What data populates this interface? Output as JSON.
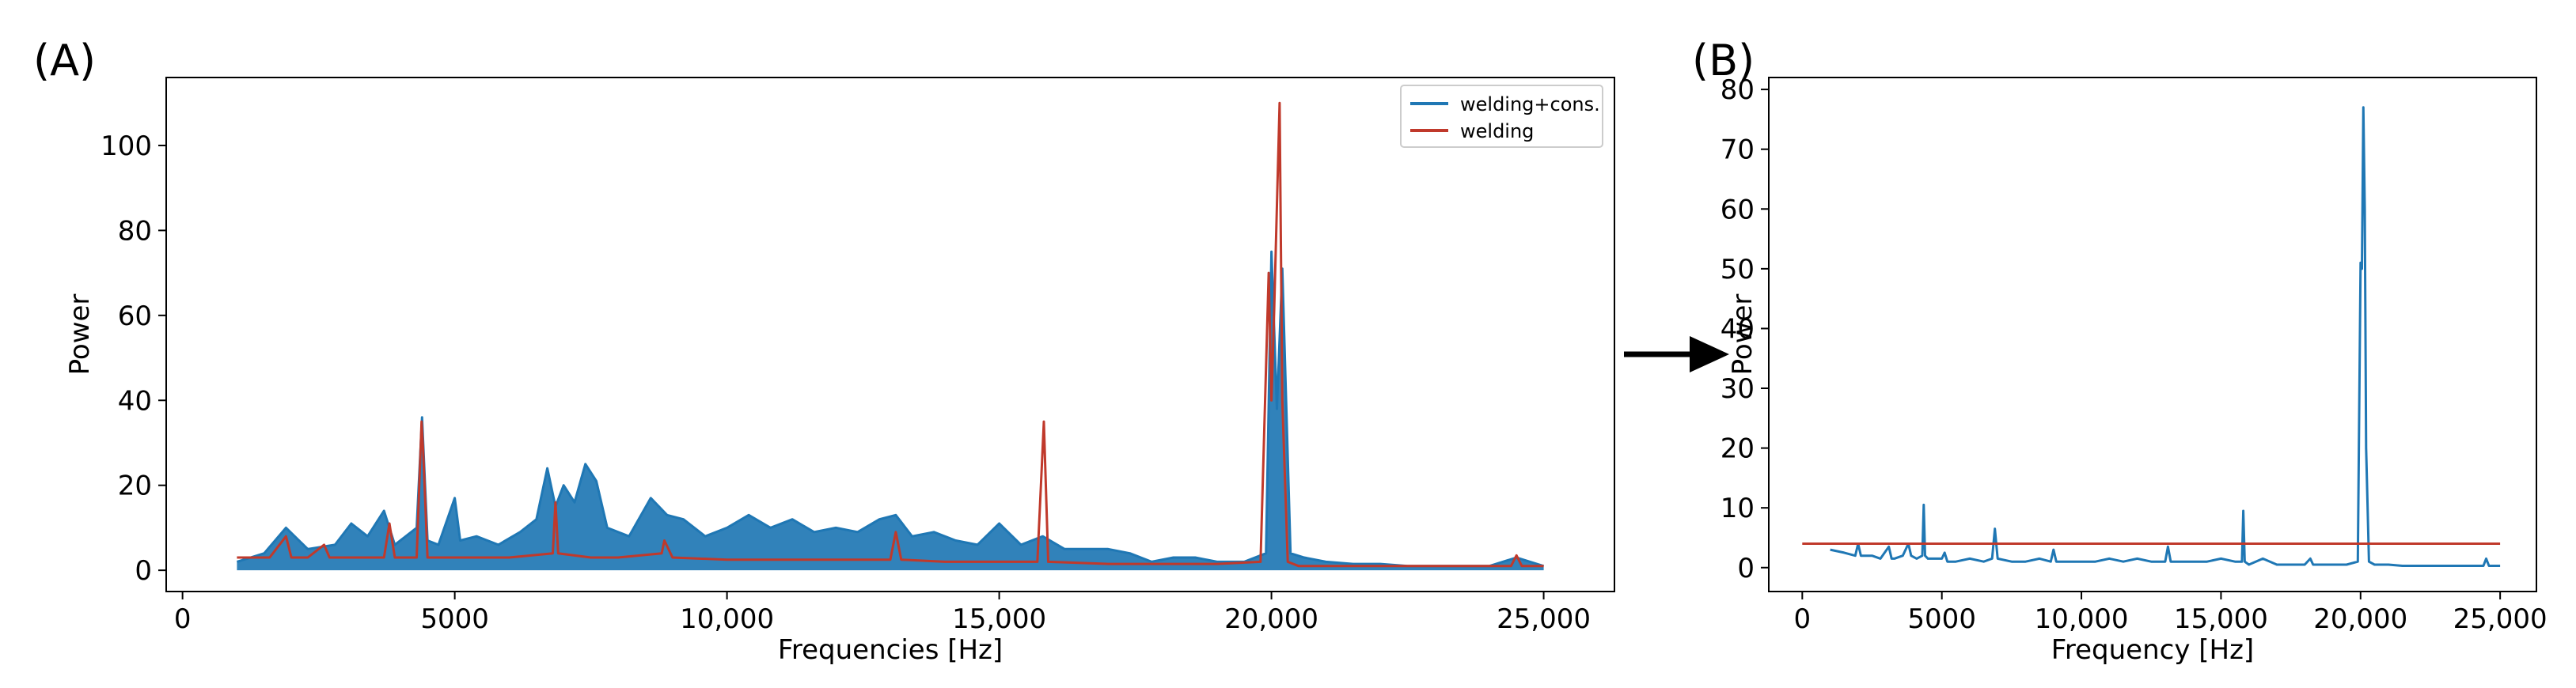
{
  "panels": {
    "a_label": "(A)",
    "b_label": "(B)"
  },
  "colors": {
    "blue": "#1f77b4",
    "red": "#c0392b",
    "frame": "#000000"
  },
  "chart_data": [
    {
      "id": "A",
      "type": "line",
      "xlabel": "Frequencies [Hz]",
      "ylabel": "Power",
      "xlim": [
        -300,
        26300
      ],
      "ylim": [
        -5,
        116
      ],
      "xticks": [
        0,
        5000,
        10000,
        15000,
        20000,
        25000
      ],
      "xtick_labels": [
        "0",
        "5000",
        "10,000",
        "15,000",
        "20,000",
        "25,000"
      ],
      "yticks": [
        0,
        20,
        40,
        60,
        80,
        100
      ],
      "ytick_labels": [
        "0",
        "20",
        "40",
        "60",
        "80",
        "100"
      ],
      "legend_position": "top-right",
      "series": [
        {
          "name": "welding+cons.",
          "color": "#1f77b4",
          "style": "filled-noisy",
          "x": [
            1000,
            1500,
            1900,
            2300,
            2800,
            3100,
            3400,
            3700,
            3900,
            4100,
            4300,
            4400,
            4500,
            4700,
            5000,
            5100,
            5400,
            5800,
            6200,
            6500,
            6700,
            6850,
            7000,
            7200,
            7400,
            7600,
            7800,
            8200,
            8600,
            8900,
            9200,
            9600,
            10000,
            10400,
            10800,
            11200,
            11600,
            12000,
            12400,
            12800,
            13100,
            13400,
            13800,
            14200,
            14600,
            15000,
            15400,
            15800,
            16200,
            16600,
            17000,
            17400,
            17800,
            18200,
            18600,
            19000,
            19500,
            19900,
            20000,
            20100,
            20200,
            20350,
            20600,
            21000,
            21500,
            22000,
            22500,
            23000,
            23500,
            24000,
            24500,
            25000
          ],
          "y": [
            2,
            4,
            10,
            5,
            6,
            11,
            8,
            14,
            6,
            8,
            10,
            36,
            7,
            6,
            17,
            7,
            8,
            6,
            9,
            12,
            24,
            15,
            20,
            16,
            25,
            21,
            10,
            8,
            17,
            13,
            12,
            8,
            10,
            13,
            10,
            12,
            9,
            10,
            9,
            12,
            13,
            8,
            9,
            7,
            6,
            11,
            6,
            8,
            5,
            5,
            5,
            4,
            2,
            3,
            3,
            2,
            2,
            4,
            75,
            38,
            71,
            4,
            3,
            2,
            1.5,
            1.5,
            1,
            1,
            1,
            1,
            3,
            1
          ]
        },
        {
          "name": "welding",
          "color": "#c0392b",
          "style": "line",
          "x": [
            1000,
            1300,
            1600,
            1900,
            2000,
            2300,
            2600,
            2700,
            3000,
            3700,
            3800,
            3900,
            4300,
            4390,
            4420,
            4500,
            5000,
            6000,
            6800,
            6850,
            6900,
            7500,
            8000,
            8800,
            8850,
            9000,
            10000,
            11000,
            12000,
            13000,
            13100,
            13200,
            14000,
            15000,
            15700,
            15780,
            15820,
            15900,
            17000,
            18000,
            19000,
            19800,
            19950,
            20000,
            20050,
            20150,
            20200,
            20300,
            20500,
            21000,
            22000,
            23000,
            24000,
            24400,
            24500,
            24600,
            25000
          ],
          "y": [
            3,
            3,
            3,
            8,
            3,
            3,
            6,
            3,
            3,
            3,
            11,
            3,
            3,
            35,
            28,
            3,
            3,
            3,
            4,
            16,
            4,
            3,
            3,
            4,
            7,
            3,
            2.5,
            2.5,
            2.5,
            2.5,
            9,
            2.5,
            2,
            2,
            2,
            24,
            35,
            2,
            1.5,
            1.5,
            1.5,
            2,
            70,
            40,
            61,
            110,
            40,
            2,
            1,
            1,
            1,
            1,
            1,
            1,
            3.5,
            1,
            1
          ]
        }
      ]
    },
    {
      "id": "B",
      "type": "line",
      "xlabel": "Frequency [Hz]",
      "ylabel": "Power",
      "xlim": [
        -1200,
        26300
      ],
      "ylim": [
        -4,
        82
      ],
      "xticks": [
        0,
        5000,
        10000,
        15000,
        20000,
        25000
      ],
      "xtick_labels": [
        "0",
        "5000",
        "10,000",
        "15,000",
        "20,000",
        "25,000"
      ],
      "yticks": [
        0,
        10,
        20,
        30,
        40,
        50,
        60,
        70,
        80
      ],
      "ytick_labels": [
        "0",
        "10",
        "20",
        "30",
        "40",
        "50",
        "60",
        "70",
        "80"
      ],
      "series": [
        {
          "color": "#1f77b4",
          "x": [
            1000,
            1500,
            1900,
            2000,
            2100,
            2500,
            2800,
            3100,
            3200,
            3300,
            3600,
            3800,
            3900,
            4100,
            4300,
            4350,
            4400,
            4500,
            5000,
            5100,
            5200,
            5500,
            6000,
            6500,
            6800,
            6900,
            7000,
            7500,
            8000,
            8500,
            8900,
            9000,
            9100,
            9500,
            10000,
            10500,
            11000,
            11500,
            12000,
            12500,
            13000,
            13100,
            13200,
            13500,
            14000,
            14500,
            15000,
            15500,
            15750,
            15800,
            15850,
            16000,
            16500,
            17000,
            17500,
            18000,
            18200,
            18300,
            18600,
            19000,
            19500,
            19900,
            20000,
            20050,
            20100,
            20150,
            20200,
            20300,
            20500,
            21000,
            21500,
            22000,
            22500,
            23000,
            23500,
            24000,
            24400,
            24500,
            24600,
            25000
          ],
          "y": [
            3,
            2.5,
            2,
            4,
            2,
            2,
            1.5,
            3.5,
            1.5,
            1.5,
            2,
            4,
            2,
            1.5,
            2,
            10.5,
            2,
            1.5,
            1.5,
            2.5,
            1,
            1,
            1.5,
            1,
            1.5,
            6.5,
            1.5,
            1,
            1,
            1.5,
            1,
            3,
            1,
            1,
            1,
            1,
            1.5,
            1,
            1.5,
            1,
            1,
            3.5,
            1,
            1,
            1,
            1,
            1.5,
            1,
            1,
            9.5,
            1,
            0.5,
            1.5,
            0.5,
            0.5,
            0.5,
            1.5,
            0.5,
            0.5,
            0.5,
            0.5,
            1,
            51,
            50,
            77,
            60,
            20,
            1,
            0.5,
            0.5,
            0.3,
            0.3,
            0.3,
            0.3,
            0.3,
            0.3,
            0.3,
            1.5,
            0.3,
            0.3
          ]
        },
        {
          "color": "#c0392b",
          "x": [
            0,
            25000
          ],
          "y": [
            4,
            4
          ]
        }
      ]
    }
  ]
}
